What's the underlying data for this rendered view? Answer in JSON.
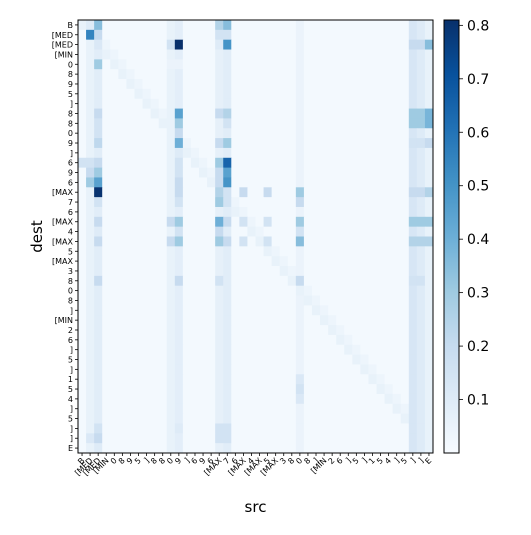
{
  "chart_data": {
    "type": "heatmap",
    "xlabel": "src",
    "ylabel": "dest",
    "labels": [
      "B",
      "[MED",
      "[MED",
      "[MIN",
      "0",
      "8",
      "9",
      "5",
      "]",
      "8",
      "8",
      "0",
      "9",
      "]",
      "6",
      "9",
      "6",
      "[MAX",
      "7",
      "6",
      "[MAX",
      "4",
      "[MAX",
      "5",
      "[MAX",
      "3",
      "8",
      "0",
      "8",
      "]",
      "[MIN",
      "2",
      "6",
      "]",
      "5",
      "]",
      "1",
      "5",
      "4",
      "]",
      "5",
      "]",
      "]",
      "E"
    ],
    "colorbar": {
      "min": 0,
      "max": 0.81,
      "ticks": [
        0.1,
        0.2,
        0.3,
        0.4,
        0.5,
        0.6,
        0.7,
        0.8
      ]
    },
    "colormap": [
      "#f7fbff",
      "#deebf7",
      "#c6dbef",
      "#9ecae1",
      "#6baed6",
      "#4292c6",
      "#2171b5",
      "#08519c",
      "#08306b"
    ],
    "base_value": 0.015,
    "column_strength": {
      "1": 0.06,
      "2": 0.09,
      "11": 0.06,
      "12": 0.08,
      "17": 0.07,
      "18": 0.09,
      "27": 0.05,
      "41": 0.13,
      "42": 0.1,
      "43": 0.06
    },
    "strong_cells": [
      [
        0,
        2,
        0.35
      ],
      [
        0,
        17,
        0.25
      ],
      [
        0,
        18,
        0.35
      ],
      [
        0,
        1,
        0.1
      ],
      [
        1,
        1,
        0.55
      ],
      [
        1,
        2,
        0.2
      ],
      [
        1,
        17,
        0.15
      ],
      [
        1,
        18,
        0.15
      ],
      [
        2,
        2,
        0.12
      ],
      [
        2,
        11,
        0.15
      ],
      [
        2,
        12,
        0.81
      ],
      [
        2,
        17,
        0.1
      ],
      [
        2,
        18,
        0.5
      ],
      [
        2,
        41,
        0.2
      ],
      [
        2,
        42,
        0.2
      ],
      [
        2,
        43,
        0.35
      ],
      [
        4,
        2,
        0.3
      ],
      [
        4,
        11,
        0.05
      ],
      [
        4,
        12,
        0.05
      ],
      [
        9,
        2,
        0.2
      ],
      [
        9,
        12,
        0.45
      ],
      [
        9,
        17,
        0.2
      ],
      [
        9,
        18,
        0.25
      ],
      [
        9,
        41,
        0.3
      ],
      [
        9,
        42,
        0.3
      ],
      [
        9,
        43,
        0.38
      ],
      [
        10,
        2,
        0.15
      ],
      [
        10,
        12,
        0.3
      ],
      [
        10,
        18,
        0.15
      ],
      [
        10,
        41,
        0.3
      ],
      [
        10,
        42,
        0.3
      ],
      [
        10,
        43,
        0.38
      ],
      [
        11,
        2,
        0.15
      ],
      [
        11,
        12,
        0.2
      ],
      [
        12,
        2,
        0.22
      ],
      [
        12,
        12,
        0.4
      ],
      [
        12,
        17,
        0.2
      ],
      [
        12,
        18,
        0.3
      ],
      [
        12,
        41,
        0.15
      ],
      [
        12,
        42,
        0.15
      ],
      [
        12,
        43,
        0.2
      ],
      [
        13,
        12,
        0.1
      ],
      [
        14,
        0,
        0.15
      ],
      [
        14,
        1,
        0.15
      ],
      [
        14,
        2,
        0.2
      ],
      [
        14,
        12,
        0.15
      ],
      [
        14,
        17,
        0.3
      ],
      [
        14,
        18,
        0.65
      ],
      [
        15,
        1,
        0.2
      ],
      [
        15,
        2,
        0.3
      ],
      [
        15,
        12,
        0.15
      ],
      [
        15,
        17,
        0.2
      ],
      [
        15,
        18,
        0.45
      ],
      [
        16,
        1,
        0.3
      ],
      [
        16,
        2,
        0.45
      ],
      [
        16,
        12,
        0.2
      ],
      [
        16,
        17,
        0.2
      ],
      [
        16,
        18,
        0.5
      ],
      [
        17,
        2,
        0.8
      ],
      [
        17,
        12,
        0.2
      ],
      [
        17,
        17,
        0.25
      ],
      [
        17,
        18,
        0.15
      ],
      [
        17,
        20,
        0.2
      ],
      [
        17,
        23,
        0.2
      ],
      [
        17,
        27,
        0.3
      ],
      [
        17,
        41,
        0.2
      ],
      [
        17,
        42,
        0.2
      ],
      [
        17,
        43,
        0.25
      ],
      [
        18,
        2,
        0.15
      ],
      [
        18,
        12,
        0.15
      ],
      [
        18,
        17,
        0.3
      ],
      [
        18,
        18,
        0.15
      ],
      [
        18,
        27,
        0.2
      ],
      [
        20,
        2,
        0.2
      ],
      [
        20,
        11,
        0.2
      ],
      [
        20,
        12,
        0.3
      ],
      [
        20,
        17,
        0.4
      ],
      [
        20,
        18,
        0.2
      ],
      [
        20,
        20,
        0.15
      ],
      [
        20,
        23,
        0.15
      ],
      [
        20,
        27,
        0.3
      ],
      [
        20,
        41,
        0.3
      ],
      [
        20,
        42,
        0.3
      ],
      [
        20,
        43,
        0.3
      ],
      [
        21,
        2,
        0.1
      ],
      [
        21,
        12,
        0.15
      ],
      [
        21,
        17,
        0.2
      ],
      [
        21,
        27,
        0.15
      ],
      [
        22,
        2,
        0.2
      ],
      [
        22,
        11,
        0.2
      ],
      [
        22,
        12,
        0.3
      ],
      [
        22,
        17,
        0.3
      ],
      [
        22,
        18,
        0.2
      ],
      [
        22,
        20,
        0.15
      ],
      [
        22,
        23,
        0.15
      ],
      [
        22,
        27,
        0.35
      ],
      [
        22,
        41,
        0.25
      ],
      [
        22,
        42,
        0.25
      ],
      [
        22,
        43,
        0.25
      ],
      [
        26,
        2,
        0.2
      ],
      [
        26,
        12,
        0.2
      ],
      [
        26,
        17,
        0.15
      ],
      [
        26,
        27,
        0.2
      ],
      [
        26,
        41,
        0.15
      ],
      [
        26,
        42,
        0.15
      ],
      [
        36,
        27,
        0.12
      ],
      [
        37,
        27,
        0.15
      ],
      [
        38,
        27,
        0.12
      ],
      [
        41,
        2,
        0.15
      ],
      [
        41,
        12,
        0.1
      ],
      [
        41,
        17,
        0.15
      ],
      [
        41,
        18,
        0.15
      ],
      [
        42,
        1,
        0.12
      ],
      [
        42,
        2,
        0.2
      ],
      [
        42,
        17,
        0.15
      ],
      [
        42,
        18,
        0.15
      ],
      [
        43,
        2,
        0.1
      ]
    ]
  }
}
